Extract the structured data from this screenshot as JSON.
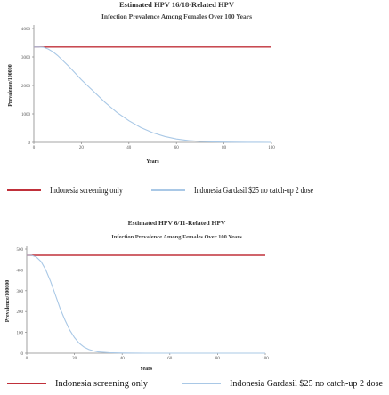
{
  "chart_data": [
    {
      "type": "line",
      "title": "Estimated HPV 16/18-Related HPV",
      "subtitle": "Infection Prevalence Among Females Over 100 Years",
      "xlabel": "Years",
      "ylabel": "Prevalence/100000",
      "xlim": [
        0,
        100
      ],
      "ylim": [
        0,
        4000
      ],
      "xticks": [
        "0",
        "20",
        "40",
        "60",
        "80",
        "100"
      ],
      "yticks": [
        "0",
        "1000",
        "2000",
        "3000",
        "4000"
      ],
      "legend_position": "bottom",
      "series": [
        {
          "name": "Indonesia screening only",
          "color": "#c0303a",
          "x": [
            0,
            100
          ],
          "y": [
            3350,
            3350
          ]
        },
        {
          "name": "Indonesia Gardasil $25 no catch-up 2 dose",
          "color": "#a9c8e6",
          "x": [
            0,
            2,
            4,
            6,
            8,
            10,
            15,
            20,
            25,
            30,
            35,
            40,
            45,
            50,
            55,
            60,
            65,
            70,
            75,
            80,
            85,
            90,
            95,
            100
          ],
          "y": [
            3350,
            3350,
            3340,
            3280,
            3180,
            3050,
            2650,
            2200,
            1800,
            1400,
            1050,
            760,
            520,
            340,
            210,
            120,
            65,
            35,
            18,
            9,
            5,
            3,
            2,
            1
          ]
        }
      ]
    },
    {
      "type": "line",
      "title": "Estimated HPV 6/11-Related HPV",
      "subtitle": "Infection Prevalence Among Females Over 100 Years",
      "xlabel": "Years",
      "ylabel": "Prevalence/100000",
      "xlim": [
        0,
        100
      ],
      "ylim": [
        0,
        500
      ],
      "xticks": [
        "0",
        "20",
        "40",
        "60",
        "80",
        "100"
      ],
      "yticks": [
        "0",
        "100",
        "200",
        "300",
        "400",
        "500"
      ],
      "legend_position": "bottom",
      "series": [
        {
          "name": "Indonesia screening only",
          "color": "#c0303a",
          "x": [
            0,
            100
          ],
          "y": [
            470,
            470
          ]
        },
        {
          "name": "Indonesia Gardasil $25 no catch-up 2 dose",
          "color": "#a9c8e6",
          "x": [
            0,
            2,
            4,
            6,
            8,
            10,
            12,
            14,
            16,
            18,
            20,
            22,
            24,
            26,
            28,
            30,
            35,
            40,
            50,
            60,
            80,
            100
          ],
          "y": [
            470,
            470,
            462,
            440,
            400,
            345,
            280,
            215,
            160,
            112,
            75,
            48,
            30,
            18,
            11,
            6,
            2,
            1,
            0,
            0,
            0,
            0
          ]
        }
      ]
    }
  ]
}
